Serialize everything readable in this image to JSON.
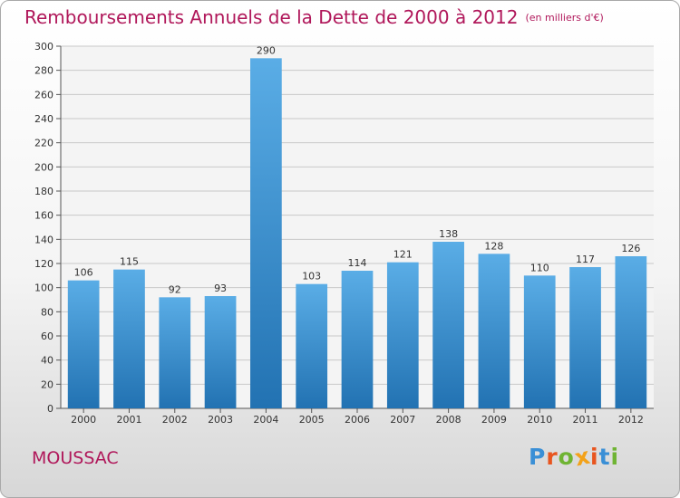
{
  "header": {
    "title": "Remboursements Annuels de la Dette de 2000 à 2012",
    "unit": "(en milliers d'€)"
  },
  "footer": {
    "place": "MOUSSAC",
    "logo_text": "Proxiti"
  },
  "colors": {
    "title": "#b0175a",
    "bar_light": "#5aade6",
    "bar_dark": "#2272b2",
    "logo": [
      "#3a8fd6",
      "#e8551f",
      "#6fb433",
      "#f3a21a",
      "#e8551f",
      "#3a8fd6",
      "#6fb433"
    ]
  },
  "chart_data": {
    "type": "bar",
    "title": "Remboursements Annuels de la Dette de 2000 à 2012",
    "subtitle": "(en milliers d'€)",
    "categories": [
      "2000",
      "2001",
      "2002",
      "2003",
      "2004",
      "2005",
      "2006",
      "2007",
      "2008",
      "2009",
      "2010",
      "2011",
      "2012"
    ],
    "values": [
      106,
      115,
      92,
      93,
      290,
      103,
      114,
      121,
      138,
      128,
      110,
      117,
      126
    ],
    "ylim": [
      0,
      300
    ],
    "yticks": [
      0,
      20,
      40,
      60,
      80,
      100,
      120,
      140,
      160,
      180,
      200,
      220,
      240,
      260,
      280,
      300
    ],
    "grid": true,
    "data_labels": true,
    "legend": "none"
  }
}
